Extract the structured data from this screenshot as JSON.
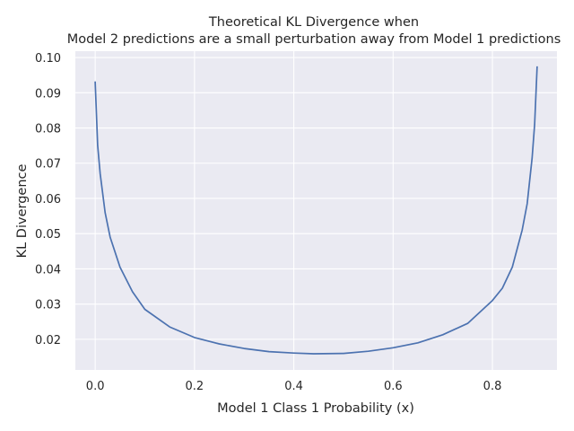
{
  "chart_data": {
    "type": "line",
    "title_lines": [
      "Theoretical KL Divergence when",
      "Model 2 predictions are a small perturbation away from Model 1 predictions"
    ],
    "xlabel": "Model 1 Class 1 Probability (x)",
    "ylabel": "KL Divergence",
    "xlim": [
      -0.04,
      0.93
    ],
    "ylim": [
      0.0113,
      0.1018
    ],
    "xticks": [
      0.0,
      0.2,
      0.4,
      0.6,
      0.8
    ],
    "xtick_labels": [
      "0.0",
      "0.2",
      "0.4",
      "0.6",
      "0.8"
    ],
    "yticks": [
      0.02,
      0.03,
      0.04,
      0.05,
      0.06,
      0.07,
      0.08,
      0.09,
      0.1
    ],
    "ytick_labels": [
      "0.02",
      "0.03",
      "0.04",
      "0.05",
      "0.06",
      "0.07",
      "0.08",
      "0.09",
      "0.10"
    ],
    "grid": true,
    "series": [
      {
        "color": "#4c72b0",
        "x": [
          0.0,
          0.005,
          0.01,
          0.02,
          0.03,
          0.05,
          0.075,
          0.1,
          0.15,
          0.2,
          0.25,
          0.3,
          0.35,
          0.4,
          0.44,
          0.5,
          0.55,
          0.6,
          0.65,
          0.7,
          0.75,
          0.8,
          0.82,
          0.84,
          0.86,
          0.87,
          0.88,
          0.885,
          0.89
        ],
        "y": [
          0.0932,
          0.075,
          0.067,
          0.056,
          0.049,
          0.0405,
          0.0335,
          0.0285,
          0.0235,
          0.0205,
          0.0187,
          0.0174,
          0.0165,
          0.0161,
          0.0159,
          0.016,
          0.0166,
          0.0176,
          0.019,
          0.0213,
          0.0245,
          0.031,
          0.0345,
          0.0405,
          0.051,
          0.0585,
          0.0715,
          0.081,
          0.0975
        ]
      }
    ]
  }
}
